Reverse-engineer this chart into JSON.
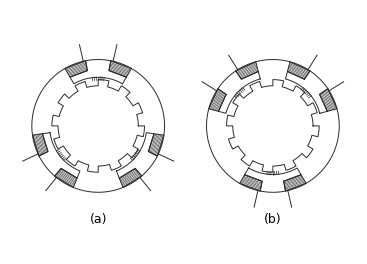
{
  "line_color": "#2a2a2a",
  "label_a": "(a)",
  "label_b": "(b)",
  "fig_width": 3.67,
  "fig_height": 2.64,
  "dpi": 100,
  "lw": 0.7
}
